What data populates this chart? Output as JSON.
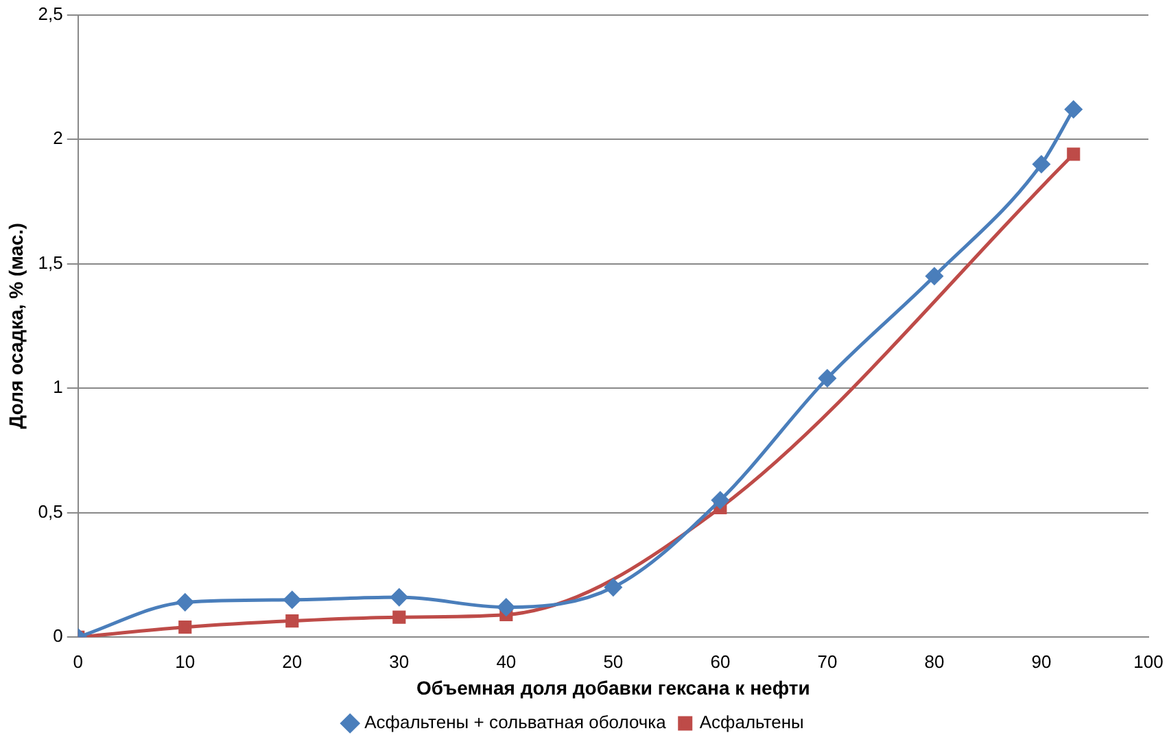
{
  "chart_data": {
    "type": "line",
    "xlabel": "Объемная доля добавки гексана к нефти",
    "ylabel": "Доля осадка, % (мас.)",
    "xlim": [
      0,
      100
    ],
    "xticks": [
      0,
      10,
      20,
      30,
      40,
      50,
      60,
      70,
      80,
      90,
      100
    ],
    "ylim": [
      0,
      2.5
    ],
    "yticks": [
      0,
      {
        "value": 0.5,
        "label": "0,5"
      },
      1,
      {
        "value": 1.5,
        "label": "1,5"
      },
      2,
      {
        "value": 2.5,
        "label": "2,5"
      }
    ],
    "grid": "y",
    "legend": "bottom",
    "line_style": "solid",
    "series": [
      {
        "name": "Асфальтены + сольватная оболочка",
        "color": "#4a7ebb",
        "marker": "diamond",
        "x": [
          0,
          10,
          20,
          30,
          40,
          50,
          60,
          70,
          80,
          90,
          93
        ],
        "values": [
          0,
          0.14,
          0.15,
          0.16,
          0.12,
          0.2,
          0.55,
          1.04,
          1.45,
          1.9,
          2.12
        ]
      },
      {
        "name": "Асфальтены",
        "color": "#be4b48",
        "marker": "square",
        "x": [
          0,
          10,
          20,
          30,
          40,
          60,
          93
        ],
        "values": [
          0,
          0.04,
          0.065,
          0.08,
          0.09,
          0.52,
          1.94
        ]
      }
    ]
  }
}
